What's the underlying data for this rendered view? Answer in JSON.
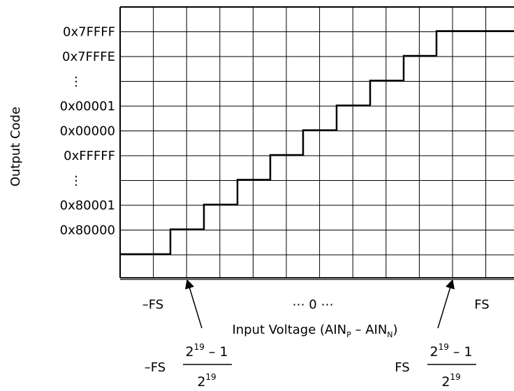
{
  "y_axis": {
    "title": "Output Code",
    "codes": [
      "0x7FFFF",
      "0x7FFFE",
      "⋮",
      "0x00001",
      "0x00000",
      "0xFFFFF",
      "⋮",
      "0x80001",
      "0x80000"
    ]
  },
  "x_axis": {
    "neg_fs": "–FS",
    "middle": "⋯ 0 ⋯",
    "pos_fs": "FS",
    "title_prefix": "Input Voltage (AIN",
    "title_p": "P",
    "title_mid": " – AIN",
    "title_n": "N",
    "title_suffix": ")"
  },
  "annotations": {
    "left_prefix": "–FS",
    "right_prefix": "FS",
    "numerator_base": "2",
    "numerator_exp": "19",
    "numerator_rest": " – 1",
    "denominator_base": "2",
    "denominator_exp": "19"
  },
  "chart_data": {
    "type": "line",
    "step_levels": [
      0,
      1,
      2,
      3,
      4,
      5,
      6,
      7,
      8,
      9
    ],
    "grid": true
  }
}
